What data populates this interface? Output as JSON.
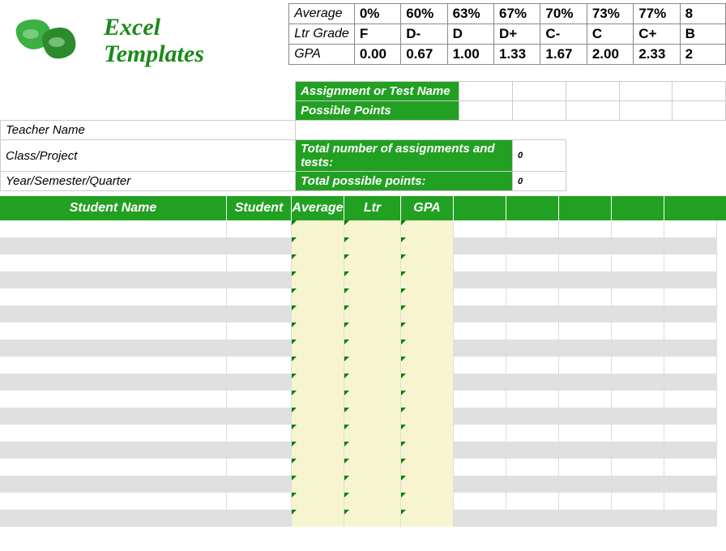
{
  "logo": {
    "line1": "Excel",
    "line2": "Templates"
  },
  "scale": {
    "row_labels": [
      "Average",
      "Ltr Grade",
      "GPA"
    ],
    "cols": [
      {
        "avg": "0%",
        "ltr": "F",
        "gpa": "0.00"
      },
      {
        "avg": "60%",
        "ltr": "D-",
        "gpa": "0.67"
      },
      {
        "avg": "63%",
        "ltr": "D",
        "gpa": "1.00"
      },
      {
        "avg": "67%",
        "ltr": "D+",
        "gpa": "1.33"
      },
      {
        "avg": "70%",
        "ltr": "C-",
        "gpa": "1.67"
      },
      {
        "avg": "73%",
        "ltr": "C",
        "gpa": "2.00"
      },
      {
        "avg": "77%",
        "ltr": "C+",
        "gpa": "2.33"
      },
      {
        "avg": "8",
        "ltr": "B",
        "gpa": "2"
      }
    ]
  },
  "assignment_label": "Assignment or Test Name",
  "points_label": "Possible Points",
  "teacher_label": "Teacher Name",
  "class_label": "Class/Project",
  "year_label": "Year/Semester/Quarter",
  "totals": {
    "assignments_label": "Total number of assignments and tests:",
    "assignments_val": "0",
    "points_label": "Total possible points:",
    "points_val": "0"
  },
  "columns": {
    "student_name": "Student Name",
    "student_id": "Student ID",
    "average": "Average",
    "ltr_grade": "Ltr Grade",
    "gpa": "GPA"
  },
  "col_widths": {
    "student_name": 280,
    "student_id": 80,
    "average": 65,
    "ltr_grade": 70,
    "gpa": 65,
    "extra": [
      65,
      65,
      65,
      65,
      65
    ]
  },
  "colors": {
    "green": "#22a022",
    "yellow": "#f7f5d0",
    "alt_gray": "#e0e0e0",
    "tri_green": "#008000"
  },
  "data_row_count": 18
}
